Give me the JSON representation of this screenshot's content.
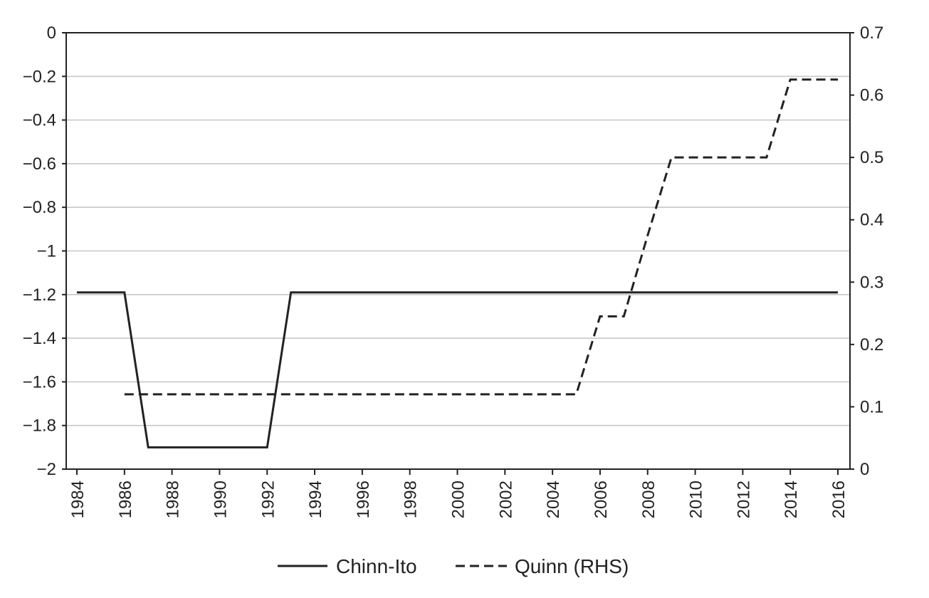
{
  "chart_data": {
    "type": "line",
    "title": "",
    "xlabel": "",
    "ylabel": "",
    "ylabel_right": "",
    "x": [
      1984,
      1985,
      1986,
      1987,
      1988,
      1989,
      1990,
      1991,
      1992,
      1993,
      1994,
      1995,
      1996,
      1997,
      1998,
      1999,
      2000,
      2001,
      2002,
      2003,
      2004,
      2005,
      2006,
      2007,
      2008,
      2009,
      2010,
      2011,
      2012,
      2013,
      2014,
      2015,
      2016
    ],
    "xlim": [
      1984,
      2016
    ],
    "x_tick_labels": [
      "1984",
      "1986",
      "1988",
      "1990",
      "1992",
      "1994",
      "1996",
      "1998",
      "2000",
      "2002",
      "2004",
      "2006",
      "2008",
      "2010",
      "2012",
      "2014",
      "2016"
    ],
    "ylim_left": [
      -2,
      0
    ],
    "y_left_tick_labels": [
      "0",
      "−0.2",
      "−0.4",
      "−0.6",
      "−0.8",
      "−1",
      "−1.2",
      "−1.4",
      "−1.6",
      "−1.8",
      "−2"
    ],
    "ylim_right": [
      0,
      0.7
    ],
    "y_right_tick_labels": [
      "0.7",
      "0.6",
      "0.5",
      "0.4",
      "0.3",
      "0.2",
      "0.1",
      "0"
    ],
    "grid": true,
    "legend_position": "bottom-center",
    "series": [
      {
        "name": "Chinn-Ito",
        "axis": "left",
        "style": "solid",
        "color": "#222222",
        "x": [
          1984,
          1985,
          1986,
          1987,
          1988,
          1989,
          1990,
          1991,
          1992,
          1993,
          1994,
          1995,
          1996,
          1997,
          1998,
          1999,
          2000,
          2001,
          2002,
          2003,
          2004,
          2005,
          2006,
          2007,
          2008,
          2009,
          2010,
          2011,
          2012,
          2013,
          2014,
          2015,
          2016
        ],
        "values": [
          -1.19,
          -1.19,
          -1.19,
          -1.9,
          -1.9,
          -1.9,
          -1.9,
          -1.9,
          -1.9,
          -1.19,
          -1.19,
          -1.19,
          -1.19,
          -1.19,
          -1.19,
          -1.19,
          -1.19,
          -1.19,
          -1.19,
          -1.19,
          -1.19,
          -1.19,
          -1.19,
          -1.19,
          -1.19,
          -1.19,
          -1.19,
          -1.19,
          -1.19,
          -1.19,
          -1.19,
          -1.19,
          -1.19
        ]
      },
      {
        "name": "Quinn (RHS)",
        "axis": "right",
        "style": "dashed",
        "color": "#222222",
        "x": [
          1986,
          1987,
          1988,
          1989,
          1990,
          1991,
          1992,
          1993,
          1994,
          1995,
          1996,
          1997,
          1998,
          1999,
          2000,
          2001,
          2002,
          2003,
          2004,
          2005,
          2006,
          2007,
          2008,
          2009,
          2010,
          2011,
          2012,
          2013,
          2014,
          2015,
          2016
        ],
        "values": [
          0.12,
          0.12,
          0.12,
          0.12,
          0.12,
          0.12,
          0.12,
          0.12,
          0.12,
          0.12,
          0.12,
          0.12,
          0.12,
          0.12,
          0.12,
          0.12,
          0.12,
          0.12,
          0.12,
          0.12,
          0.245,
          0.245,
          0.375,
          0.5,
          0.5,
          0.5,
          0.5,
          0.5,
          0.625,
          0.625,
          0.625
        ]
      }
    ]
  }
}
